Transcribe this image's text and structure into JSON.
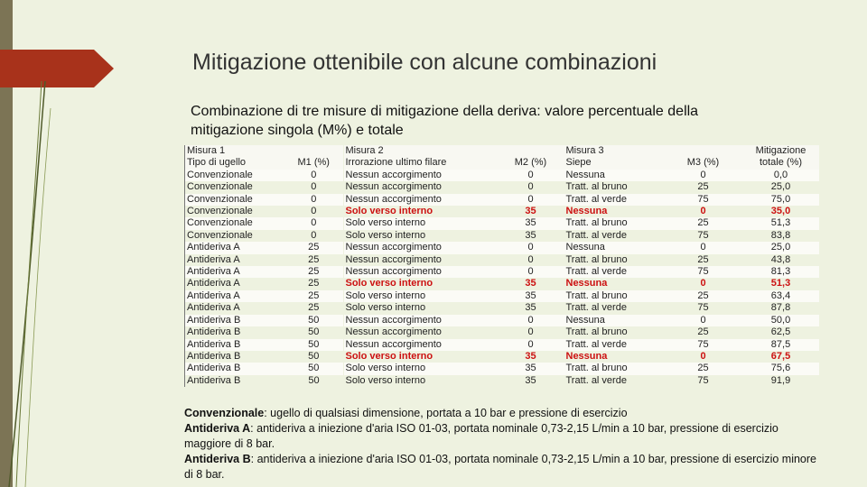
{
  "slide": {
    "title": "Mitigazione ottenibile con alcune combinazioni",
    "subtitle": "Combinazione di tre misure di mitigazione della deriva: valore percentuale della mitigazione singola (M%) e totale"
  },
  "table": {
    "header_row1": [
      "Misura 1",
      "",
      "Misura 2",
      "",
      "Misura 3",
      "",
      "Mitigazione"
    ],
    "header_row2": [
      "Tipo di ugello",
      "M1 (%)",
      "Irrorazione ultimo filare",
      "M2 (%)",
      "Siepe",
      "M3 (%)",
      "totale (%)"
    ],
    "rows": [
      {
        "tipo": "Convenzionale",
        "m1": "0",
        "irr": "Nessun accorgimento",
        "m2": "0",
        "siepe": "Nessuna",
        "m3": "0",
        "tot": "0,0",
        "hl": false
      },
      {
        "tipo": "Convenzionale",
        "m1": "0",
        "irr": "Nessun accorgimento",
        "m2": "0",
        "siepe": "Tratt. al bruno",
        "m3": "25",
        "tot": "25,0",
        "hl": false
      },
      {
        "tipo": "Convenzionale",
        "m1": "0",
        "irr": "Nessun accorgimento",
        "m2": "0",
        "siepe": "Tratt. al verde",
        "m3": "75",
        "tot": "75,0",
        "hl": false
      },
      {
        "tipo": "Convenzionale",
        "m1": "0",
        "irr": "Solo verso interno",
        "m2": "35",
        "siepe": "Nessuna",
        "m3": "0",
        "tot": "35,0",
        "hl": true
      },
      {
        "tipo": "Convenzionale",
        "m1": "0",
        "irr": "Solo verso interno",
        "m2": "35",
        "siepe": "Tratt. al bruno",
        "m3": "25",
        "tot": "51,3",
        "hl": false
      },
      {
        "tipo": "Convenzionale",
        "m1": "0",
        "irr": "Solo verso interno",
        "m2": "35",
        "siepe": "Tratt. al verde",
        "m3": "75",
        "tot": "83,8",
        "hl": false
      },
      {
        "tipo": "Antideriva A",
        "m1": "25",
        "irr": "Nessun accorgimento",
        "m2": "0",
        "siepe": "Nessuna",
        "m3": "0",
        "tot": "25,0",
        "hl": false
      },
      {
        "tipo": "Antideriva A",
        "m1": "25",
        "irr": "Nessun accorgimento",
        "m2": "0",
        "siepe": "Tratt. al bruno",
        "m3": "25",
        "tot": "43,8",
        "hl": false
      },
      {
        "tipo": "Antideriva A",
        "m1": "25",
        "irr": "Nessun accorgimento",
        "m2": "0",
        "siepe": "Tratt. al verde",
        "m3": "75",
        "tot": "81,3",
        "hl": false
      },
      {
        "tipo": "Antideriva A",
        "m1": "25",
        "irr": "Solo verso interno",
        "m2": "35",
        "siepe": "Nessuna",
        "m3": "0",
        "tot": "51,3",
        "hl": true
      },
      {
        "tipo": "Antideriva A",
        "m1": "25",
        "irr": "Solo verso interno",
        "m2": "35",
        "siepe": "Tratt. al bruno",
        "m3": "25",
        "tot": "63,4",
        "hl": false
      },
      {
        "tipo": "Antideriva A",
        "m1": "25",
        "irr": "Solo verso interno",
        "m2": "35",
        "siepe": "Tratt. al verde",
        "m3": "75",
        "tot": "87,8",
        "hl": false
      },
      {
        "tipo": "Antideriva B",
        "m1": "50",
        "irr": "Nessun accorgimento",
        "m2": "0",
        "siepe": "Nessuna",
        "m3": "0",
        "tot": "50,0",
        "hl": false
      },
      {
        "tipo": "Antideriva B",
        "m1": "50",
        "irr": "Nessun accorgimento",
        "m2": "0",
        "siepe": "Tratt. al bruno",
        "m3": "25",
        "tot": "62,5",
        "hl": false
      },
      {
        "tipo": "Antideriva B",
        "m1": "50",
        "irr": "Nessun accorgimento",
        "m2": "0",
        "siepe": "Tratt. al verde",
        "m3": "75",
        "tot": "87,5",
        "hl": false
      },
      {
        "tipo": "Antideriva B",
        "m1": "50",
        "irr": "Solo verso interno",
        "m2": "35",
        "siepe": "Nessuna",
        "m3": "0",
        "tot": "67,5",
        "hl": true
      },
      {
        "tipo": "Antideriva B",
        "m1": "50",
        "irr": "Solo verso interno",
        "m2": "35",
        "siepe": "Tratt. al bruno",
        "m3": "25",
        "tot": "75,6",
        "hl": false
      },
      {
        "tipo": "Antideriva B",
        "m1": "50",
        "irr": "Solo verso interno",
        "m2": "35",
        "siepe": "Tratt. al verde",
        "m3": "75",
        "tot": "91,9",
        "hl": false
      }
    ],
    "highlight_color": "#cc1111"
  },
  "notes": [
    {
      "term": "Convenzionale",
      "text": ": ugello di qualsiasi dimensione, portata a 10 bar e pressione di esercizio"
    },
    {
      "term": "Antideriva A",
      "text": ": antideriva a iniezione d'aria ISO 01-03, portata nominale 0,73-2,15 L/min a 10 bar, pressione di esercizio maggiore di 8 bar."
    },
    {
      "term": "Antideriva B",
      "text": ": antideriva a iniezione d'aria ISO 01-03, portata nominale 0,73-2,15 L/min a 10 bar, pressione di esercizio minore di 8 bar."
    }
  ],
  "colors": {
    "background": "#eef2e0",
    "accent_arrow": "#a8321b",
    "left_bar": "#7c7455"
  }
}
